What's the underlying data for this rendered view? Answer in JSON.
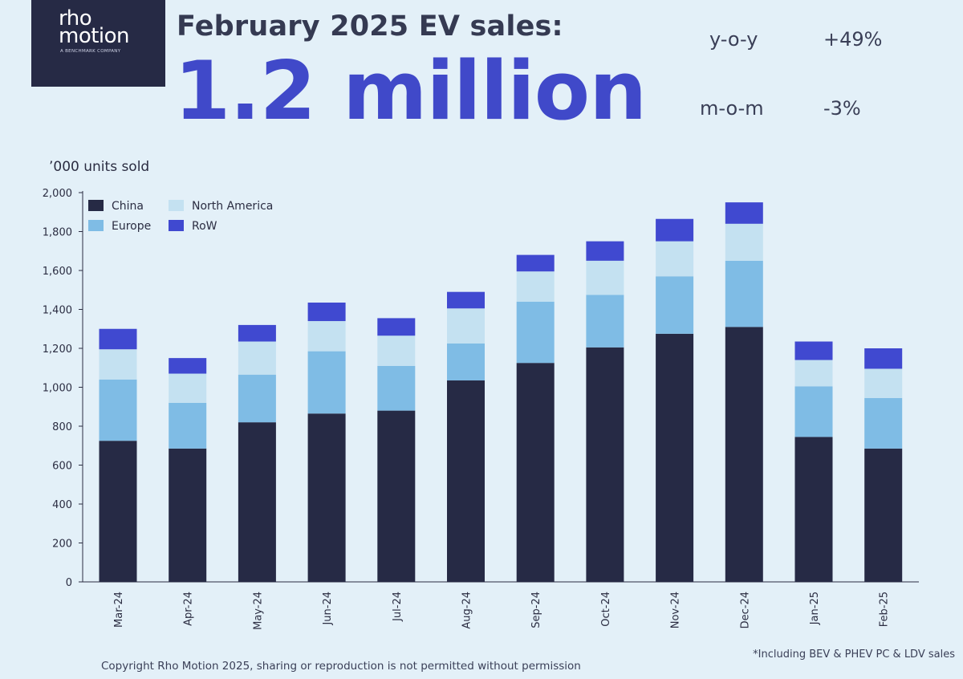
{
  "brand": {
    "logo_line1": "rho",
    "logo_line2": "motion",
    "logo_tagline": "A BENCHMARK COMPANY"
  },
  "headline": "February 2025 EV sales:",
  "big_number": "1.2 million",
  "stats": [
    {
      "label": "y-o-y",
      "value": "+49%"
    },
    {
      "label": "m-o-m",
      "value": "-3%"
    }
  ],
  "footer": "Copyright Rho Motion 2025, sharing or reproduction is not permitted without permission",
  "footnote": "*Including BEV & PHEV PC & LDV sales",
  "colors": {
    "China": "#262a45",
    "Europe": "#7fbce5",
    "North America": "#c4e1f1",
    "RoW": "#4049d0"
  },
  "chart_data": {
    "type": "bar",
    "stacked": true,
    "ylabel": "’000 units sold",
    "ylim": [
      0,
      2000
    ],
    "yticks": [
      0,
      200,
      400,
      600,
      800,
      1000,
      1200,
      1400,
      1600,
      1800,
      2000
    ],
    "ytick_labels": [
      "0",
      "200",
      "400",
      "600",
      "800",
      "1,000",
      "1,200",
      "1,400",
      "1,600",
      "1,800",
      "2,000"
    ],
    "grid": false,
    "legend_position": "top-left",
    "categories": [
      "Mar-24",
      "Apr-24",
      "May-24",
      "Jun-24",
      "Jul-24",
      "Aug-24",
      "Sep-24",
      "Oct-24",
      "Nov-24",
      "Dec-24",
      "Jan-25",
      "Feb-25"
    ],
    "series": [
      {
        "name": "China",
        "values": [
          725,
          685,
          820,
          865,
          880,
          1035,
          1125,
          1205,
          1275,
          1310,
          745,
          685
        ]
      },
      {
        "name": "Europe",
        "values": [
          315,
          235,
          245,
          320,
          230,
          190,
          315,
          270,
          295,
          340,
          260,
          260
        ]
      },
      {
        "name": "North America",
        "values": [
          155,
          150,
          170,
          155,
          155,
          180,
          155,
          175,
          180,
          190,
          135,
          150
        ]
      },
      {
        "name": "RoW",
        "values": [
          105,
          80,
          85,
          95,
          90,
          85,
          85,
          100,
          115,
          110,
          95,
          105
        ]
      }
    ]
  }
}
